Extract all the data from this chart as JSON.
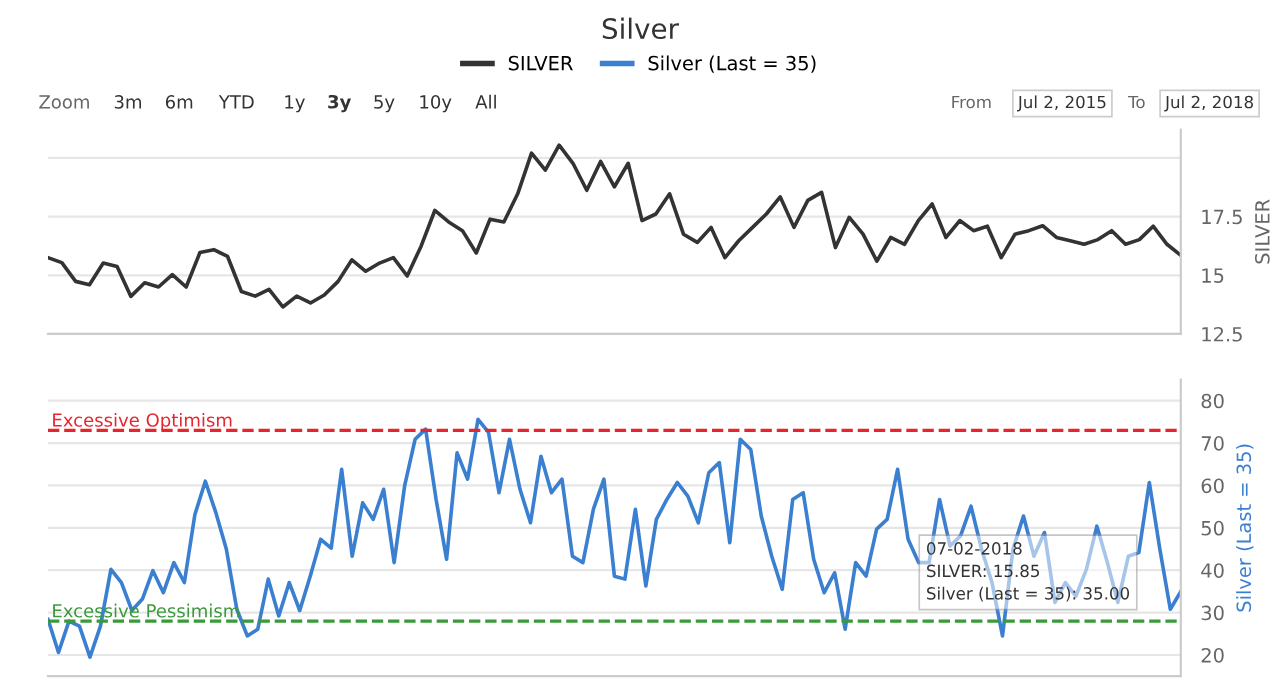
{
  "chart_data": [
    {
      "type": "line",
      "title": "Silver",
      "ylabel": "SILVER",
      "legend": "top",
      "grid": "y",
      "tick_labels": "y",
      "marker": "none",
      "line_style": "solid",
      "categories": [
        null,
        null,
        null,
        null,
        null,
        null,
        null,
        null,
        null,
        null,
        null,
        null,
        null,
        null,
        null,
        null,
        null,
        null,
        null,
        null,
        null,
        null,
        null,
        null,
        null,
        null,
        null,
        null,
        null,
        null,
        null,
        null,
        null,
        null,
        null,
        null,
        null,
        null,
        null,
        null,
        null,
        null,
        null,
        null,
        null,
        null,
        null,
        null,
        null,
        null,
        null,
        null,
        null,
        null,
        null,
        null,
        null,
        null,
        null,
        null,
        null,
        null,
        null,
        null,
        null,
        null,
        null,
        null,
        null,
        null,
        null,
        null,
        null,
        null,
        null,
        null,
        null,
        null,
        null,
        null,
        null,
        null,
        null
      ],
      "ylim": [
        12.5,
        21.2
      ],
      "yticks": [
        {
          "value": 12.5,
          "label": "12.5"
        },
        15,
        {
          "value": 17.5,
          "label": "17.5"
        },
        {
          "value": 20,
          "label": null
        }
      ],
      "annotations": [
        "Zoom",
        "3m",
        "6m",
        "YTD",
        "1y",
        "3y",
        "5y",
        "10y",
        "All",
        "From",
        "Jul 2, 2015",
        "To",
        "Jul 2, 2018"
      ],
      "series": [
        {
          "name": "SILVER",
          "color": "#333333",
          "values": [
            15.75,
            15.54,
            14.74,
            14.6,
            15.52,
            15.37,
            14.1,
            14.68,
            14.5,
            15.03,
            14.5,
            15.97,
            16.09,
            15.8,
            14.31,
            14.11,
            14.4,
            13.65,
            14.11,
            13.82,
            14.16,
            14.74,
            15.66,
            15.17,
            15.52,
            15.75,
            14.97,
            16.23,
            17.76,
            17.27,
            16.9,
            15.95,
            17.39,
            17.27,
            18.47,
            20.2,
            19.48,
            20.54,
            19.77,
            18.62,
            19.85,
            18.77,
            19.77,
            17.33,
            17.61,
            18.47,
            16.75,
            16.4,
            17.04,
            15.75,
            16.47,
            17.04,
            17.61,
            18.34,
            17.04,
            18.19,
            18.53,
            16.18,
            17.47,
            16.75,
            15.6,
            16.61,
            16.32,
            17.33,
            18.04,
            16.61,
            17.33,
            16.9,
            17.09,
            15.75,
            16.75,
            16.9,
            17.11,
            16.61,
            16.47,
            16.32,
            16.52,
            16.9,
            16.32,
            16.52,
            17.09,
            16.32,
            15.85
          ]
        }
      ]
    },
    {
      "type": "line",
      "ylabel": "Silver (Last = 35)",
      "grid": "y",
      "tick_labels": "y",
      "marker": "none",
      "line_style": "solid",
      "categories": [
        null,
        null,
        null,
        null,
        null,
        null,
        null,
        null,
        null,
        null,
        null,
        null,
        null,
        null,
        null,
        null,
        null,
        null,
        null,
        null,
        null,
        null,
        null,
        null,
        null,
        null,
        null,
        null,
        null,
        null,
        null,
        null,
        null,
        null,
        null,
        null,
        null,
        null,
        null,
        null,
        null,
        null,
        null,
        null,
        null,
        null,
        null,
        null,
        null,
        null,
        null,
        null,
        null,
        null,
        null,
        null,
        null,
        null,
        null,
        null,
        null,
        null,
        null,
        null,
        null,
        null,
        null,
        null,
        null,
        null,
        null,
        null,
        null,
        null,
        null,
        null,
        null,
        null,
        null,
        null,
        null,
        null,
        null,
        null,
        null,
        null,
        null,
        null,
        null,
        null,
        null,
        null,
        null,
        null,
        null,
        null,
        null,
        null,
        null,
        null,
        null,
        null,
        null,
        null,
        null,
        null,
        null,
        null,
        null
      ],
      "ylim": [
        15,
        85
      ],
      "yticks": [
        20,
        30,
        40,
        50,
        60,
        70,
        80
      ],
      "ref_lines": [
        {
          "axis": "y",
          "value": 73,
          "label": "Excessive Optimism",
          "color": "#e8242c",
          "line_style": "dashed"
        },
        {
          "axis": "y",
          "value": 28,
          "label": "Excessive Pessimism",
          "color": "#3a9a3a",
          "line_style": "dashed"
        }
      ],
      "annotations": [
        "07-02-2018",
        "SILVER: 15.85",
        "Silver (Last = 35): 35.00"
      ],
      "series": [
        {
          "name": "Silver (Last = 35)",
          "color": "#3a7fd0",
          "values": [
            28.4,
            20.6,
            28.0,
            26.8,
            19.5,
            26.8,
            40.2,
            37.1,
            30.5,
            33.2,
            39.9,
            34.7,
            41.8,
            37.1,
            53.1,
            61.0,
            53.6,
            45.0,
            30.8,
            24.5,
            26.1,
            37.9,
            29.2,
            37.1,
            30.5,
            38.6,
            47.3,
            45.2,
            63.8,
            43.3,
            55.9,
            52.0,
            59.1,
            41.8,
            59.9,
            70.9,
            73.3,
            56.7,
            42.6,
            67.7,
            61.5,
            75.6,
            72.5,
            58.3,
            70.9,
            59.1,
            51.2,
            66.9,
            58.3,
            61.5,
            43.3,
            41.8,
            54.4,
            61.5,
            38.6,
            37.9,
            54.4,
            36.3,
            52.0,
            56.7,
            60.7,
            57.5,
            51.2,
            63.0,
            65.4,
            46.5,
            70.9,
            68.5,
            52.8,
            43.3,
            35.5,
            56.7,
            58.3,
            42.6,
            34.7,
            39.4,
            26.1,
            41.8,
            38.6,
            49.7,
            52.0,
            63.8,
            47.3,
            41.8,
            41.8,
            56.7,
            45.7,
            48.1,
            55.1,
            45.0,
            37.1,
            24.5,
            45.0,
            52.8,
            43.3,
            48.9,
            32.4,
            37.1,
            33.9,
            40.2,
            50.4,
            41.8,
            32.4,
            43.3,
            44.2,
            60.7,
            45.0,
            30.8,
            35.0
          ]
        }
      ]
    }
  ]
}
